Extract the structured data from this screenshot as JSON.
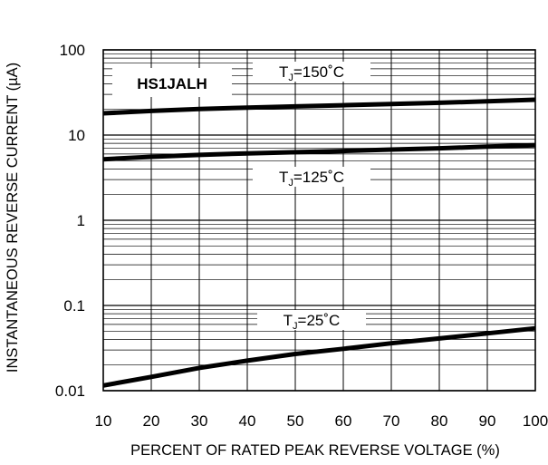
{
  "chart_data": {
    "type": "line",
    "ylabel": "INSTANTANEOUS REVERSE CURRENT (µA)",
    "xlabel": "PERCENT OF RATED PEAK REVERSE VOLTAGE (%)",
    "xlim": [
      10,
      100
    ],
    "ylim": [
      0.01,
      100
    ],
    "y_scale": "log",
    "grid": true,
    "x_ticks": [
      "10",
      "20",
      "30",
      "40",
      "50",
      "60",
      "70",
      "80",
      "90",
      "100"
    ],
    "y_ticks": [
      "0.01",
      "0.1",
      "1",
      "10",
      "100"
    ],
    "part_label": "HS1JALH",
    "series": [
      {
        "label_main": "T",
        "label_sub": "J",
        "label_rest": "=150˚C",
        "color": "#000000",
        "x": [
          10,
          20,
          30,
          40,
          50,
          60,
          70,
          80,
          90,
          100
        ],
        "y": [
          18.0,
          19.2,
          20.2,
          21.0,
          21.7,
          22.4,
          23.1,
          23.9,
          24.9,
          26.0
        ]
      },
      {
        "label_main": "T",
        "label_sub": "J",
        "label_rest": "=125˚C",
        "color": "#000000",
        "x": [
          10,
          20,
          30,
          40,
          50,
          60,
          70,
          80,
          90,
          100
        ],
        "y": [
          5.2,
          5.55,
          5.85,
          6.1,
          6.3,
          6.5,
          6.75,
          7.0,
          7.3,
          7.6
        ]
      },
      {
        "label_main": "T",
        "label_sub": "J",
        "label_rest": "=25˚C",
        "color": "#000000",
        "x": [
          10,
          20,
          30,
          40,
          50,
          60,
          70,
          80,
          90,
          100
        ],
        "y": [
          0.0115,
          0.0145,
          0.0185,
          0.0225,
          0.027,
          0.031,
          0.036,
          0.041,
          0.047,
          0.054
        ]
      }
    ]
  }
}
